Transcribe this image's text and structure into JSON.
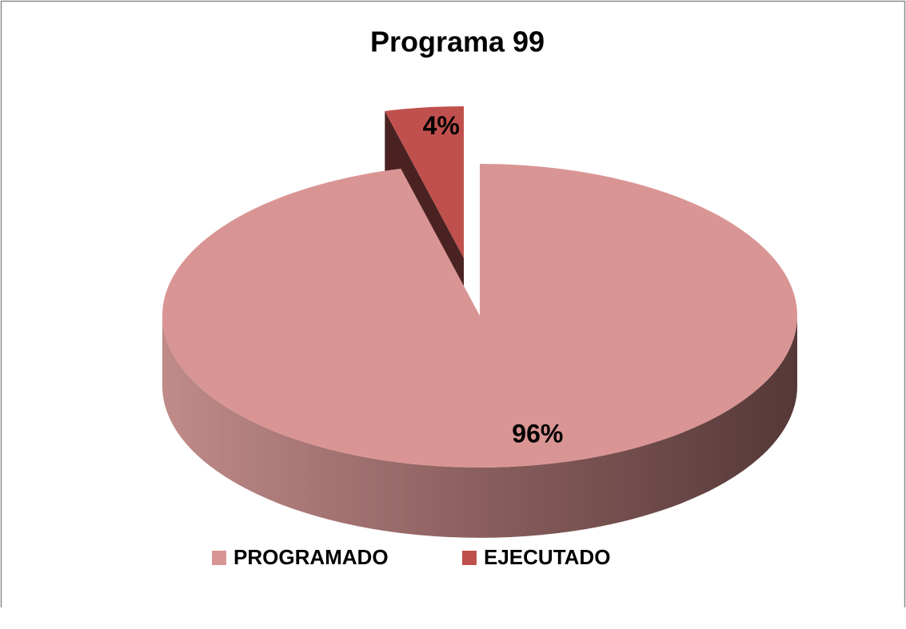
{
  "chart_data": {
    "type": "pie",
    "title": "Programa 99",
    "categories": [
      "PROGRAMADO",
      "EJECUTADO"
    ],
    "values": [
      96,
      4
    ],
    "value_labels": [
      "96%",
      "4%"
    ],
    "colors": [
      "#d99594",
      "#c0504d"
    ],
    "legend": "bottom"
  }
}
